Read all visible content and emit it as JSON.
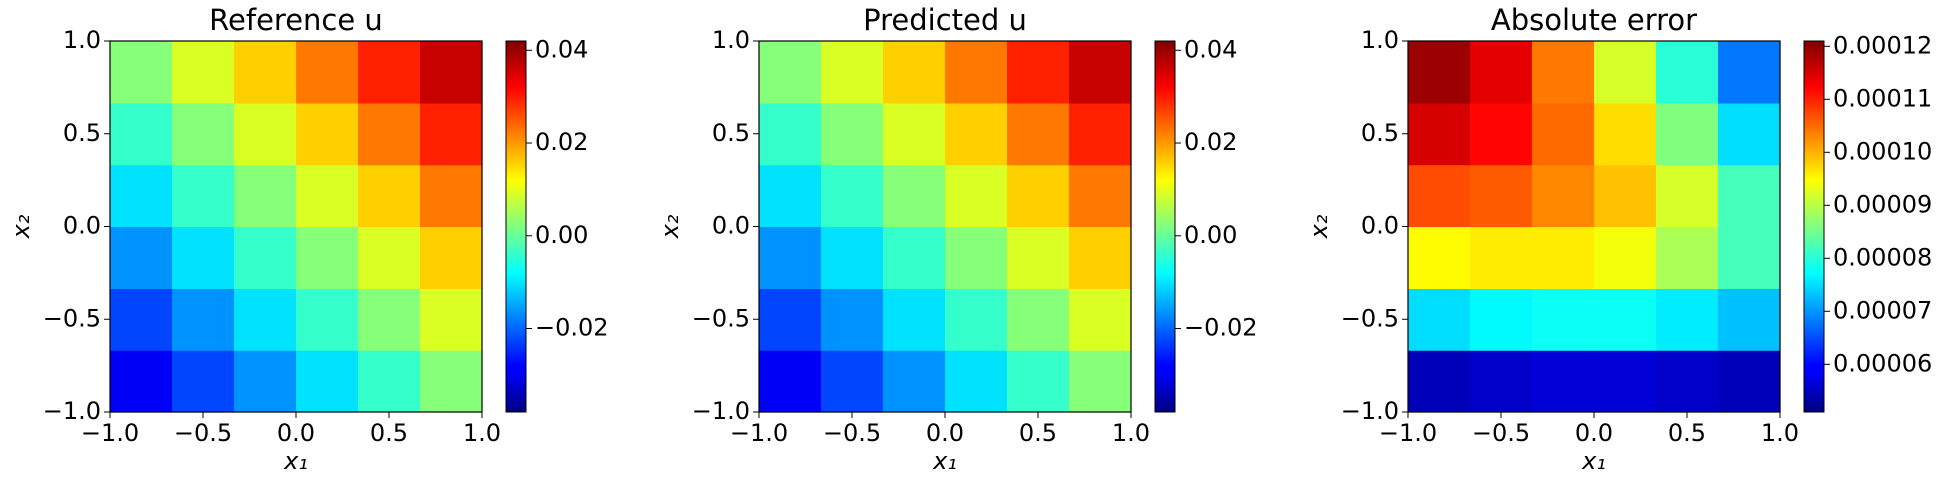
{
  "chart_data": [
    {
      "type": "heatmap",
      "title": "Reference u",
      "xlabel": "x₁",
      "ylabel": "x₂",
      "colormap": "jet",
      "x": [
        -0.833,
        -0.5,
        -0.167,
        0.167,
        0.5,
        0.833
      ],
      "y": [
        -0.833,
        -0.5,
        -0.167,
        0.167,
        0.5,
        0.833
      ],
      "z": [
        [
          -0.0286,
          -0.0226,
          -0.0165,
          -0.0103,
          -0.0039,
          0.0025
        ],
        [
          -0.0226,
          -0.0165,
          -0.0103,
          -0.0039,
          0.0025,
          0.0091
        ],
        [
          -0.0165,
          -0.0103,
          -0.0039,
          0.0025,
          0.0091,
          0.0157
        ],
        [
          -0.0103,
          -0.0039,
          0.0025,
          0.0091,
          0.0157,
          0.0225
        ],
        [
          -0.0039,
          0.0025,
          0.0091,
          0.0157,
          0.0225,
          0.0294
        ],
        [
          0.0025,
          0.0091,
          0.0157,
          0.0225,
          0.0294,
          0.0364
        ]
      ],
      "xlim": [
        -1,
        1
      ],
      "ylim": [
        -1,
        1
      ],
      "xticks": [
        {
          "value": -1,
          "label": "−1.0"
        },
        {
          "value": -0.5,
          "label": "−0.5"
        },
        {
          "value": 0,
          "label": "0.0"
        },
        {
          "value": 0.5,
          "label": "0.5"
        },
        {
          "value": 1,
          "label": "1.0"
        }
      ],
      "yticks": [
        {
          "value": -1,
          "label": "−1.0"
        },
        {
          "value": -0.5,
          "label": "−0.5"
        },
        {
          "value": 0,
          "label": "0.0"
        },
        {
          "value": 0.5,
          "label": "0.5"
        },
        {
          "value": 1,
          "label": "1.0"
        }
      ],
      "clim": [
        -0.038,
        0.042
      ],
      "cbar_ticks": [
        {
          "value": -0.02,
          "label": "−0.02"
        },
        {
          "value": 0,
          "label": "0.00"
        },
        {
          "value": 0.02,
          "label": "0.02"
        },
        {
          "value": 0.04,
          "label": "0.04"
        }
      ]
    },
    {
      "type": "heatmap",
      "title": "Predicted u",
      "xlabel": "x₁",
      "ylabel": "x₂",
      "colormap": "jet",
      "x": [
        -0.833,
        -0.5,
        -0.167,
        0.167,
        0.5,
        0.833
      ],
      "y": [
        -0.833,
        -0.5,
        -0.167,
        0.167,
        0.5,
        0.833
      ],
      "z": [
        [
          -0.0286,
          -0.0226,
          -0.0165,
          -0.0103,
          -0.0039,
          0.0025
        ],
        [
          -0.0226,
          -0.0165,
          -0.0103,
          -0.0039,
          0.0025,
          0.0091
        ],
        [
          -0.0165,
          -0.0103,
          -0.0039,
          0.0025,
          0.0091,
          0.0157
        ],
        [
          -0.0103,
          -0.0039,
          0.0025,
          0.0091,
          0.0157,
          0.0225
        ],
        [
          -0.0039,
          0.0025,
          0.0091,
          0.0157,
          0.0225,
          0.0294
        ],
        [
          0.0025,
          0.0091,
          0.0157,
          0.0225,
          0.0294,
          0.0364
        ]
      ],
      "xlim": [
        -1,
        1
      ],
      "ylim": [
        -1,
        1
      ],
      "xticks": [
        {
          "value": -1,
          "label": "−1.0"
        },
        {
          "value": -0.5,
          "label": "−0.5"
        },
        {
          "value": 0,
          "label": "0.0"
        },
        {
          "value": 0.5,
          "label": "0.5"
        },
        {
          "value": 1,
          "label": "1.0"
        }
      ],
      "yticks": [
        {
          "value": -1,
          "label": "−1.0"
        },
        {
          "value": -0.5,
          "label": "−0.5"
        },
        {
          "value": 0,
          "label": "0.0"
        },
        {
          "value": 0.5,
          "label": "0.5"
        },
        {
          "value": 1,
          "label": "1.0"
        }
      ],
      "clim": [
        -0.038,
        0.042
      ],
      "cbar_ticks": [
        {
          "value": -0.02,
          "label": "−0.02"
        },
        {
          "value": 0,
          "label": "0.00"
        },
        {
          "value": 0.02,
          "label": "0.02"
        },
        {
          "value": 0.04,
          "label": "0.04"
        }
      ]
    },
    {
      "type": "heatmap",
      "title": "Absolute error",
      "xlabel": "x₁",
      "ylabel": "x₂",
      "colormap": "jet",
      "x": [
        -0.833,
        -0.5,
        -0.167,
        0.167,
        0.5,
        0.833
      ],
      "y": [
        -0.833,
        -0.5,
        -0.167,
        0.167,
        0.5,
        0.833
      ],
      "z": [
        [
          5.5e-05,
          5.6e-05,
          5.7e-05,
          5.7e-05,
          5.6e-05,
          5.5e-05
        ],
        [
          7.5e-05,
          7.7e-05,
          7.8e-05,
          7.8e-05,
          7.6e-05,
          7.3e-05
        ],
        [
          9.5e-05,
          9.6e-05,
          9.6e-05,
          9.4e-05,
          8.9e-05,
          8.2e-05
        ],
        [
          0.000107,
          0.000106,
          0.000103,
          9.9e-05,
          9.2e-05,
          8.2e-05
        ],
        [
          0.000115,
          0.000112,
          0.000105,
          9.7e-05,
          8.6e-05,
          7.5e-05
        ],
        [
          0.000119,
          0.000114,
          0.000104,
          9.2e-05,
          8e-05,
          6.8e-05
        ]
      ],
      "xlim": [
        -1,
        1
      ],
      "ylim": [
        -1,
        1
      ],
      "xticks": [
        {
          "value": -1,
          "label": "−1.0"
        },
        {
          "value": -0.5,
          "label": "−0.5"
        },
        {
          "value": 0,
          "label": "0.0"
        },
        {
          "value": 0.5,
          "label": "0.5"
        },
        {
          "value": 1,
          "label": "1.0"
        }
      ],
      "yticks": [
        {
          "value": -1,
          "label": "−1.0"
        },
        {
          "value": -0.5,
          "label": "−0.5"
        },
        {
          "value": 0,
          "label": "0.0"
        },
        {
          "value": 0.5,
          "label": "0.5"
        },
        {
          "value": 1,
          "label": "1.0"
        }
      ],
      "clim": [
        5.1e-05,
        0.000121
      ],
      "cbar_ticks": [
        6e-05,
        7e-05,
        8e-05,
        9e-05,
        {
          "value": 0.0001,
          "label": "0.00010"
        },
        0.00011,
        0.00012
      ]
    }
  ]
}
